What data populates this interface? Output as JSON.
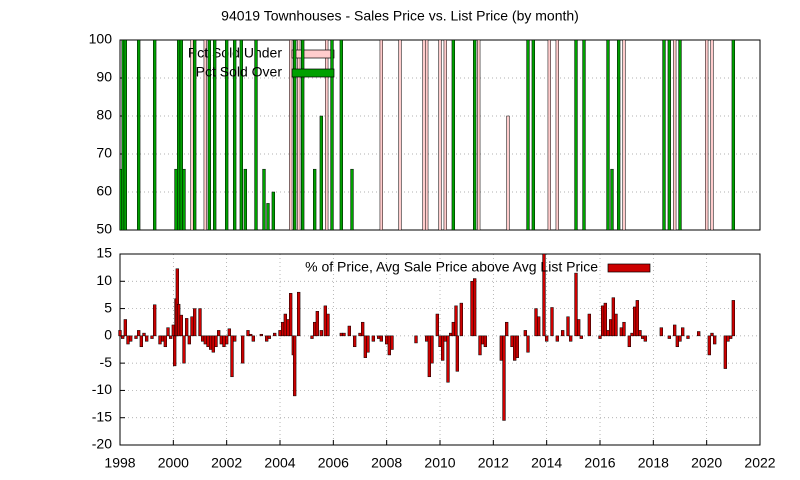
{
  "chart_data": [
    {
      "type": "bar",
      "title": "94019 Townhouses - Sales Price vs. List Price (by month)",
      "x": [
        1998.04,
        1998.12,
        1998.2,
        1998.7,
        1999.3,
        2000.1,
        2000.2,
        2000.3,
        2000.4,
        2000.7,
        2000.8,
        2001.2,
        2001.35,
        2001.55,
        2002.0,
        2002.3,
        2002.55,
        2002.7,
        2003.1,
        2003.4,
        2003.55,
        2003.75,
        2004.4,
        2004.55,
        2004.7,
        2004.85,
        2005.3,
        2005.55,
        2005.75,
        2005.95,
        2006.3,
        2006.7,
        2007.8,
        2008.5,
        2009.4,
        2009.5,
        2010.0,
        2010.2,
        2010.5,
        2011.3,
        2011.45,
        2012.55,
        2013.3,
        2013.5,
        2014.1,
        2014.4,
        2015.1,
        2015.4,
        2016.3,
        2016.45,
        2016.7,
        2016.9,
        2018.4,
        2018.6,
        2018.8,
        2019.0,
        2020.0,
        2020.2,
        2021.0
      ],
      "series": [
        {
          "name": "Pct Sold Under",
          "color": "#ffcccc",
          "values": [
            null,
            null,
            null,
            null,
            null,
            null,
            null,
            null,
            null,
            100,
            null,
            100,
            null,
            null,
            null,
            null,
            null,
            null,
            null,
            null,
            null,
            null,
            100,
            null,
            100,
            null,
            null,
            null,
            100,
            null,
            null,
            null,
            100,
            100,
            100,
            100,
            100,
            100,
            null,
            null,
            100,
            80,
            null,
            null,
            100,
            100,
            null,
            null,
            null,
            null,
            null,
            100,
            null,
            null,
            100,
            null,
            100,
            100,
            null
          ]
        },
        {
          "name": "Pct Sold Over",
          "color": "#00a000",
          "values": [
            66,
            100,
            100,
            100,
            100,
            66,
            100,
            100,
            66,
            null,
            100,
            null,
            100,
            100,
            100,
            100,
            100,
            66,
            100,
            66,
            57,
            60,
            null,
            100,
            null,
            100,
            66,
            80,
            null,
            100,
            100,
            66,
            null,
            null,
            null,
            null,
            null,
            null,
            100,
            100,
            null,
            null,
            100,
            100,
            null,
            null,
            100,
            100,
            100,
            66,
            100,
            null,
            100,
            100,
            null,
            100,
            null,
            null,
            100
          ]
        }
      ],
      "xlim": [
        1998,
        2022
      ],
      "ylim": [
        50,
        100
      ],
      "yticks": [
        50,
        60,
        70,
        80,
        90,
        100
      ],
      "grid": true,
      "legend": "top left"
    },
    {
      "type": "bar",
      "x": [
        1998.0,
        1998.1,
        1998.2,
        1998.3,
        1998.4,
        1998.6,
        1998.7,
        1998.8,
        1998.9,
        1999.0,
        1999.2,
        1999.3,
        1999.5,
        1999.6,
        1999.7,
        1999.8,
        1999.9,
        2000.0,
        2000.05,
        2000.1,
        2000.15,
        2000.2,
        2000.3,
        2000.4,
        2000.5,
        2000.6,
        2000.7,
        2000.8,
        2001.0,
        2001.1,
        2001.2,
        2001.3,
        2001.4,
        2001.5,
        2001.6,
        2001.7,
        2001.8,
        2001.9,
        2002.0,
        2002.1,
        2002.2,
        2002.3,
        2002.6,
        2002.8,
        2002.9,
        2003.0,
        2003.3,
        2003.5,
        2003.6,
        2003.8,
        2004.0,
        2004.1,
        2004.2,
        2004.3,
        2004.4,
        2004.5,
        2004.55,
        2004.7,
        2005.2,
        2005.3,
        2005.4,
        2005.55,
        2005.7,
        2005.8,
        2006.3,
        2006.4,
        2006.6,
        2006.8,
        2007.0,
        2007.1,
        2007.2,
        2007.3,
        2007.5,
        2007.7,
        2007.8,
        2008.0,
        2008.1,
        2008.2,
        2009.1,
        2009.5,
        2009.6,
        2009.7,
        2009.9,
        2010.0,
        2010.1,
        2010.2,
        2010.3,
        2010.4,
        2010.5,
        2010.6,
        2010.65,
        2010.8,
        2011.2,
        2011.3,
        2011.5,
        2011.6,
        2011.7,
        2012.3,
        2012.4,
        2012.5,
        2012.7,
        2012.8,
        2012.9,
        2013.2,
        2013.3,
        2013.6,
        2013.7,
        2013.9,
        2014.0,
        2014.2,
        2014.4,
        2014.6,
        2014.8,
        2014.9,
        2015.1,
        2015.2,
        2015.3,
        2015.6,
        2016.0,
        2016.1,
        2016.2,
        2016.3,
        2016.4,
        2016.5,
        2016.6,
        2016.8,
        2016.9,
        2017.1,
        2017.2,
        2017.3,
        2017.4,
        2017.5,
        2017.6,
        2017.7,
        2018.3,
        2018.6,
        2018.8,
        2018.9,
        2019.0,
        2019.1,
        2019.3,
        2019.7,
        2020.1,
        2020.2,
        2020.3,
        2020.6,
        2020.7,
        2020.8,
        2020.9,
        2021.0
      ],
      "series": [
        {
          "name": "% of Price, Avg Sale Price above Avg List Price",
          "color": "#cc0000",
          "values": [
            1,
            -0.5,
            3,
            -1.5,
            -1,
            -0.5,
            1,
            -2,
            0.5,
            -1,
            -0.5,
            5.7,
            -1.5,
            -1,
            -2,
            1.5,
            -0.5,
            2,
            -5.5,
            6.8,
            12.3,
            5.8,
            3.8,
            -5,
            3.2,
            -1.5,
            3.5,
            5,
            5,
            -1,
            -1.5,
            -2,
            -2.5,
            -3,
            -2,
            1,
            -1.5,
            -2,
            -1.5,
            1.3,
            -7.5,
            -1,
            -5,
            1,
            0.3,
            -1,
            0.3,
            -1,
            -0.5,
            0.5,
            1,
            2.5,
            4,
            3,
            7.8,
            -3.5,
            -11,
            8,
            -0.5,
            2.5,
            4.5,
            1,
            5.5,
            4,
            0.5,
            0.5,
            1.8,
            -2,
            0.5,
            2.5,
            -4,
            -3,
            -1,
            -0.5,
            -1,
            -1.5,
            -3.5,
            -2.5,
            -1.3,
            -1,
            -7.5,
            -5,
            4,
            -2,
            -4.5,
            -1,
            -8.5,
            0.5,
            2.5,
            5.5,
            -6.5,
            6,
            10,
            10.5,
            -3.5,
            -1.5,
            -2,
            -4.5,
            -15.5,
            2.5,
            -2,
            -4.5,
            -4,
            1,
            -3,
            5,
            3.5,
            15,
            -1,
            5.2,
            -1,
            1,
            3.5,
            -1,
            11.5,
            3,
            -0.5,
            4,
            -0.5,
            5.5,
            6,
            1,
            3,
            7,
            4,
            1.5,
            2.5,
            -2,
            0.5,
            5.3,
            6.5,
            1,
            -0.5,
            -1,
            1.5,
            -0.5,
            2,
            -2,
            -1,
            1.5,
            -0.5,
            0.8,
            -3.5,
            0.5,
            -1.5,
            0,
            -6,
            -1,
            -0.5,
            6.5
          ]
        }
      ],
      "xlim": [
        1998,
        2022
      ],
      "xticks": [
        1998,
        2000,
        2002,
        2004,
        2006,
        2008,
        2010,
        2012,
        2014,
        2016,
        2018,
        2020,
        2022
      ],
      "ylim": [
        -20,
        15
      ],
      "yticks": [
        -20,
        -15,
        -10,
        -5,
        0,
        5,
        10,
        15
      ],
      "grid": true,
      "legend": "top right"
    }
  ]
}
